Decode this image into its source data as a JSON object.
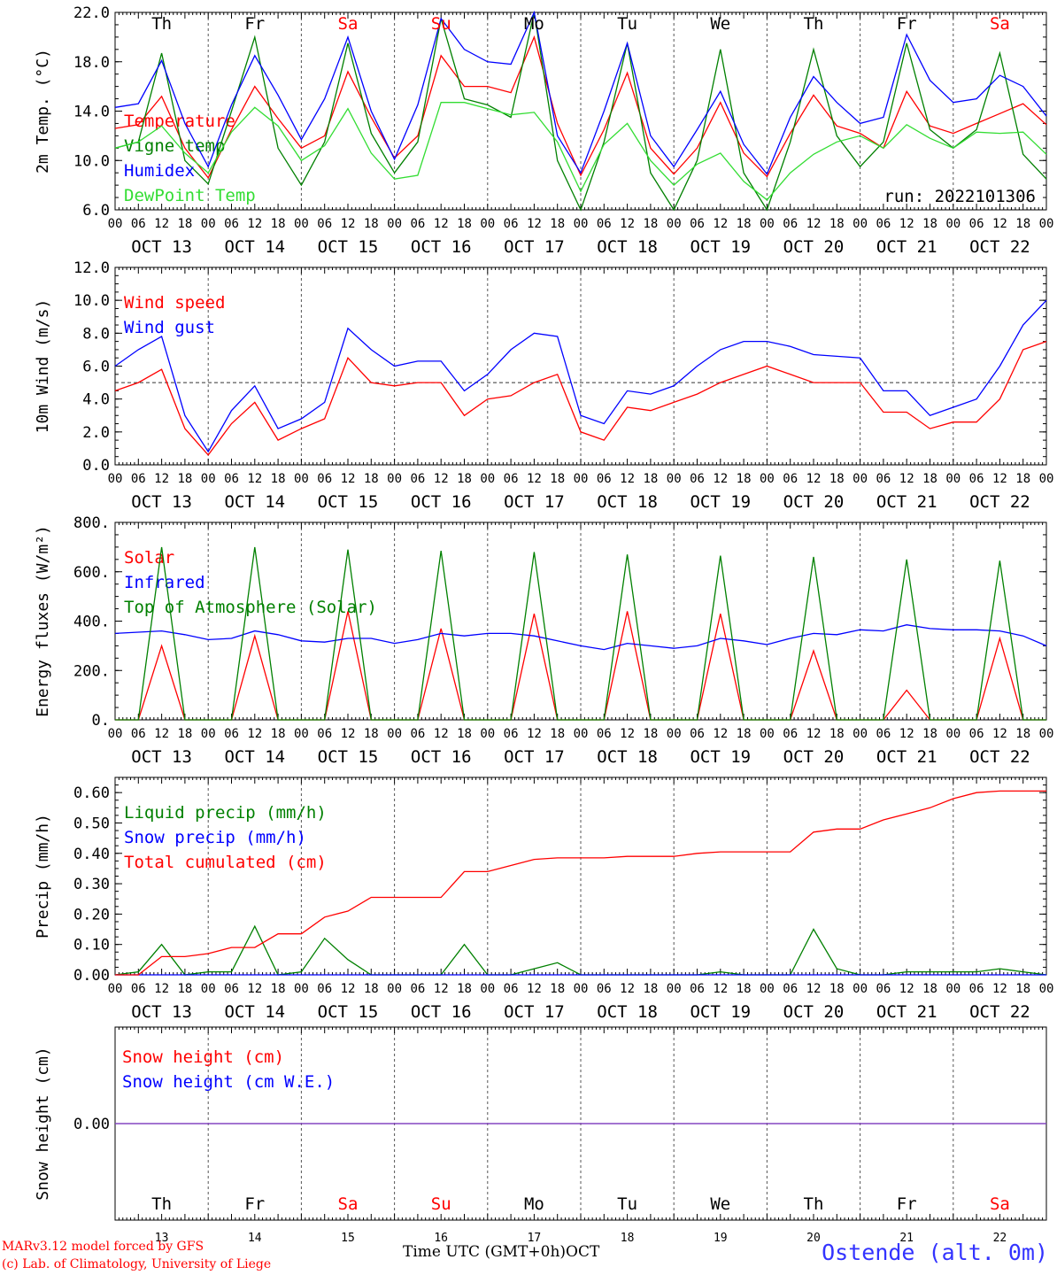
{
  "chart_data": [
    {
      "type": "line",
      "ylabel": "2m Temp. (°C)",
      "ylim": [
        6,
        22
      ],
      "yticks": [
        "6.0",
        "10.0",
        "14.0",
        "18.0",
        "22.0"
      ],
      "x_hours": [
        0,
        6,
        12,
        18,
        24,
        30,
        36,
        42,
        48,
        54,
        60,
        66,
        72,
        78,
        84,
        90,
        96,
        102,
        108,
        114,
        120,
        126,
        132,
        138,
        144,
        150,
        156,
        162,
        168,
        174,
        180,
        186,
        192,
        198,
        204,
        210,
        216,
        222,
        228,
        234,
        240
      ],
      "run": "run: 2022101306",
      "day_labels": [
        {
          "name": "Th",
          "weekend": false
        },
        {
          "name": "Fr",
          "weekend": false
        },
        {
          "name": "Sa",
          "weekend": true
        },
        {
          "name": "Su",
          "weekend": true
        },
        {
          "name": "Mo",
          "weekend": false
        },
        {
          "name": "Tu",
          "weekend": false
        },
        {
          "name": "We",
          "weekend": false
        },
        {
          "name": "Th",
          "weekend": false
        },
        {
          "name": "Fr",
          "weekend": false
        },
        {
          "name": "Sa",
          "weekend": true
        }
      ],
      "series": [
        {
          "name": "Temperature",
          "color": "#ff0000",
          "values": [
            12.6,
            12.9,
            15.2,
            11.0,
            8.6,
            12.5,
            16.0,
            13.4,
            11.0,
            12.0,
            17.2,
            13.5,
            10.2,
            12.0,
            18.5,
            16.0,
            16.0,
            15.5,
            20.0,
            13.0,
            8.8,
            12.5,
            17.1,
            11.0,
            8.9,
            11.0,
            14.7,
            10.6,
            8.7,
            12.2,
            15.3,
            12.8,
            12.2,
            11.0,
            15.6,
            12.8,
            12.2,
            13.0,
            13.8,
            14.6,
            12.9
          ]
        },
        {
          "name": "Vigne temp",
          "color": "#008000",
          "values": [
            11.0,
            11.5,
            18.7,
            10.0,
            8.1,
            14.0,
            20.0,
            11.0,
            8.0,
            11.5,
            19.5,
            12.2,
            9.0,
            11.5,
            21.5,
            15.0,
            14.5,
            13.5,
            22.0,
            10.0,
            6.0,
            11.5,
            19.5,
            9.0,
            6.0,
            10.0,
            19.0,
            9.0,
            6.0,
            11.5,
            19.0,
            12.0,
            9.5,
            11.5,
            19.5,
            12.5,
            11.0,
            12.5,
            18.7,
            10.5,
            8.5
          ]
        },
        {
          "name": "Humidex",
          "color": "#0000ff",
          "values": [
            14.3,
            14.6,
            18.1,
            13.0,
            9.5,
            14.5,
            18.5,
            15.3,
            11.7,
            15.0,
            20.0,
            14.0,
            10.1,
            14.5,
            21.5,
            19.0,
            18.0,
            17.8,
            22.0,
            12.0,
            9.0,
            14.0,
            19.5,
            12.0,
            9.5,
            12.5,
            15.6,
            11.3,
            8.9,
            13.5,
            16.8,
            14.7,
            13.0,
            13.5,
            20.2,
            16.5,
            14.7,
            15.0,
            16.9,
            16.0,
            13.6
          ]
        },
        {
          "name": "DewPoint Temp",
          "color": "#33dd33",
          "values": [
            11.0,
            11.5,
            12.8,
            10.6,
            9.0,
            12.3,
            14.3,
            12.8,
            10.0,
            11.2,
            14.2,
            10.6,
            8.5,
            8.8,
            14.7,
            14.7,
            14.2,
            13.7,
            13.9,
            11.5,
            7.5,
            11.3,
            13.0,
            10.0,
            8.0,
            9.7,
            10.6,
            8.3,
            6.8,
            9.0,
            10.5,
            11.5,
            12.0,
            11.0,
            12.9,
            11.8,
            11.0,
            12.3,
            12.2,
            12.3,
            10.5
          ]
        }
      ]
    },
    {
      "type": "line",
      "ylabel": "10m Wind (m/s)",
      "ylim": [
        0,
        12
      ],
      "yticks": [
        "0.0",
        "2.0",
        "4.0",
        "6.0",
        "8.0",
        "10.0",
        "12.0"
      ],
      "reference_line": 5,
      "x_hours": [
        0,
        6,
        12,
        18,
        24,
        30,
        36,
        42,
        48,
        54,
        60,
        66,
        72,
        78,
        84,
        90,
        96,
        102,
        108,
        114,
        120,
        126,
        132,
        138,
        144,
        150,
        156,
        162,
        168,
        174,
        180,
        186,
        192,
        198,
        204,
        210,
        216,
        222,
        228,
        234,
        240
      ],
      "series": [
        {
          "name": "Wind speed",
          "color": "#ff0000",
          "values": [
            4.5,
            5.0,
            5.8,
            2.2,
            0.6,
            2.5,
            3.8,
            1.5,
            2.2,
            2.8,
            6.5,
            5.0,
            4.8,
            5.0,
            5.0,
            3.0,
            4.0,
            4.2,
            5.0,
            5.5,
            2.0,
            1.5,
            3.5,
            3.3,
            3.8,
            4.3,
            5.0,
            5.5,
            6.0,
            5.5,
            5.0,
            5.0,
            5.0,
            3.2,
            3.2,
            2.2,
            2.6,
            2.6,
            4.0,
            7.0,
            7.5
          ]
        },
        {
          "name": "Wind gust",
          "color": "#0000ff",
          "values": [
            6.0,
            7.0,
            7.8,
            3.0,
            0.8,
            3.3,
            4.8,
            2.2,
            2.8,
            3.8,
            8.3,
            7.0,
            6.0,
            6.3,
            6.3,
            4.5,
            5.5,
            7.0,
            8.0,
            7.8,
            3.0,
            2.5,
            4.5,
            4.3,
            4.8,
            6.0,
            7.0,
            7.5,
            7.5,
            7.2,
            6.7,
            6.6,
            6.5,
            4.5,
            4.5,
            3.0,
            3.5,
            4.0,
            6.0,
            8.5,
            10.0
          ]
        }
      ]
    },
    {
      "type": "line",
      "ylabel": "Energy fluxes (W/m²)",
      "ylim": [
        0,
        800
      ],
      "yticks": [
        "0.",
        "200.",
        "400.",
        "600.",
        "800."
      ],
      "x_hours": [
        0,
        6,
        12,
        18,
        24,
        30,
        36,
        42,
        48,
        54,
        60,
        66,
        72,
        78,
        84,
        90,
        96,
        102,
        108,
        114,
        120,
        126,
        132,
        138,
        144,
        150,
        156,
        162,
        168,
        174,
        180,
        186,
        192,
        198,
        204,
        210,
        216,
        222,
        228,
        234,
        240
      ],
      "series": [
        {
          "name": "Solar",
          "color": "#ff0000",
          "values": [
            0,
            0,
            300,
            0,
            0,
            0,
            340,
            0,
            0,
            0,
            440,
            0,
            0,
            0,
            370,
            0,
            0,
            0,
            430,
            0,
            0,
            0,
            440,
            0,
            0,
            0,
            430,
            0,
            0,
            0,
            280,
            0,
            0,
            0,
            120,
            0,
            0,
            0,
            330,
            0,
            0
          ]
        },
        {
          "name": "Infrared",
          "color": "#0000ff",
          "values": [
            350,
            355,
            360,
            345,
            325,
            330,
            360,
            345,
            320,
            315,
            330,
            330,
            310,
            325,
            350,
            340,
            350,
            350,
            340,
            320,
            300,
            285,
            310,
            300,
            290,
            300,
            330,
            320,
            305,
            330,
            350,
            345,
            365,
            360,
            385,
            370,
            365,
            365,
            360,
            340,
            300
          ]
        },
        {
          "name": "Top of Atmosphere (Solar)",
          "color": "#008000",
          "values": [
            0,
            0,
            700,
            0,
            0,
            0,
            700,
            0,
            0,
            0,
            690,
            0,
            0,
            0,
            685,
            0,
            0,
            0,
            680,
            0,
            0,
            0,
            670,
            0,
            0,
            0,
            665,
            0,
            0,
            0,
            660,
            0,
            0,
            0,
            650,
            0,
            0,
            0,
            645,
            0,
            0
          ]
        }
      ]
    },
    {
      "type": "line",
      "ylabel": "Precip (mm/h)",
      "ylim": [
        0,
        0.65
      ],
      "yticks": [
        "0.00",
        "0.10",
        "0.20",
        "0.30",
        "0.40",
        "0.50",
        "0.60"
      ],
      "x_hours": [
        0,
        6,
        12,
        18,
        24,
        30,
        36,
        42,
        48,
        54,
        60,
        66,
        72,
        78,
        84,
        90,
        96,
        102,
        108,
        114,
        120,
        126,
        132,
        138,
        144,
        150,
        156,
        162,
        168,
        174,
        180,
        186,
        192,
        198,
        204,
        210,
        216,
        222,
        228,
        234,
        240
      ],
      "series": [
        {
          "name": "Liquid precip (mm/h)",
          "color": "#008000",
          "values": [
            0,
            0.01,
            0.1,
            0,
            0.01,
            0.01,
            0.16,
            0,
            0.01,
            0.12,
            0.05,
            0,
            0,
            0,
            0,
            0.1,
            0,
            0,
            0.02,
            0.04,
            0,
            0,
            0,
            0,
            0,
            0,
            0.01,
            0,
            0,
            0,
            0.15,
            0.02,
            0,
            0,
            0.01,
            0.01,
            0.01,
            0.01,
            0.02,
            0.01,
            0
          ]
        },
        {
          "name": "Snow precip (mm/h)",
          "color": "#0000ff",
          "values": [
            0,
            0,
            0,
            0,
            0,
            0,
            0,
            0,
            0,
            0,
            0,
            0,
            0,
            0,
            0,
            0,
            0,
            0,
            0,
            0,
            0,
            0,
            0,
            0,
            0,
            0,
            0,
            0,
            0,
            0,
            0,
            0,
            0,
            0,
            0,
            0,
            0,
            0,
            0,
            0,
            0
          ]
        },
        {
          "name": "Total cumulated (cm)",
          "color": "#ff0000",
          "values": [
            0,
            0,
            0.06,
            0.06,
            0.07,
            0.09,
            0.09,
            0.135,
            0.135,
            0.19,
            0.21,
            0.255,
            0.255,
            0.255,
            0.255,
            0.34,
            0.34,
            0.36,
            0.38,
            0.385,
            0.385,
            0.385,
            0.39,
            0.39,
            0.39,
            0.4,
            0.405,
            0.405,
            0.405,
            0.405,
            0.47,
            0.48,
            0.48,
            0.51,
            0.53,
            0.55,
            0.58,
            0.6,
            0.605,
            0.605,
            0.605
          ]
        }
      ]
    },
    {
      "type": "line",
      "ylabel": "Snow height (cm)",
      "ylim": [
        -1,
        1
      ],
      "yticks": [
        "0.00"
      ],
      "series": [
        {
          "name": "Snow height (cm)",
          "color": "#ff0000",
          "values": [
            0,
            0
          ]
        },
        {
          "name": "Snow height (cm W.E.)",
          "color": "#0000ff",
          "values": [
            0,
            0
          ]
        }
      ],
      "day_labels": [
        {
          "name": "Th",
          "weekend": false
        },
        {
          "name": "Fr",
          "weekend": false
        },
        {
          "name": "Sa",
          "weekend": true
        },
        {
          "name": "Su",
          "weekend": true
        },
        {
          "name": "Mo",
          "weekend": false
        },
        {
          "name": "Tu",
          "weekend": false
        },
        {
          "name": "We",
          "weekend": false
        },
        {
          "name": "Th",
          "weekend": false
        },
        {
          "name": "Fr",
          "weekend": false
        },
        {
          "name": "Sa",
          "weekend": true
        }
      ],
      "day_numbers": [
        "13",
        "14",
        "15",
        "16",
        "17",
        "18",
        "19",
        "20",
        "21",
        "22"
      ]
    }
  ],
  "xaxis": {
    "hour_labels": [
      "00",
      "06",
      "12",
      "18"
    ],
    "date_labels": [
      "OCT 13",
      "OCT 14",
      "OCT 15",
      "OCT 16",
      "OCT 17",
      "OCT 18",
      "OCT 19",
      "OCT 20",
      "OCT 21",
      "OCT 22"
    ],
    "xlabel": "Time UTC (GMT+0h)",
    "month": "OCT"
  },
  "footer": {
    "model": "MARv3.12 model forced by GFS",
    "copyright": "(c) Lab. of Climatology, University of Liege",
    "station": "Ostende (alt. 0m)"
  },
  "colors": {
    "weekday": "#000000",
    "weekend": "#ff0000"
  }
}
